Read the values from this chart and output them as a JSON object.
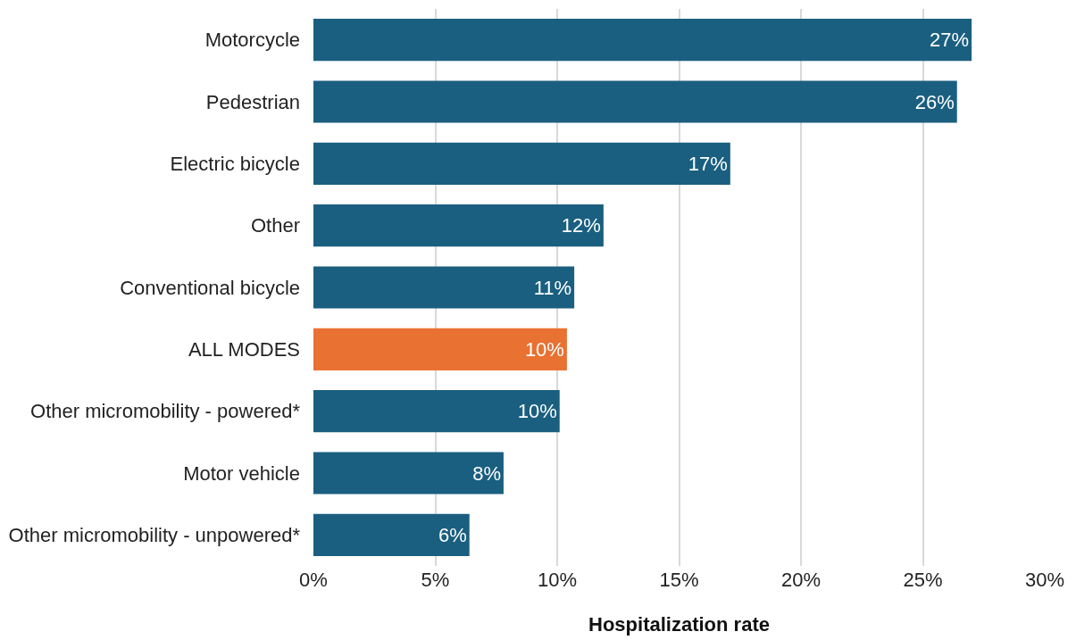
{
  "chart_data": {
    "type": "bar",
    "orientation": "horizontal",
    "xlabel": "Hospitalization rate",
    "categories": [
      "Motorcycle",
      "Pedestrian",
      "Electric bicycle",
      "Other",
      "Conventional bicycle",
      "ALL MODES",
      "Other micromobility - powered*",
      "Motor vehicle",
      "Other micromobility - unpowered*"
    ],
    "values": [
      27.0,
      26.4,
      17.1,
      11.9,
      10.7,
      10.4,
      10.1,
      7.8,
      6.4
    ],
    "value_labels": [
      "27%",
      "26%",
      "17%",
      "12%",
      "11%",
      "10%",
      "10%",
      "8%",
      "6%"
    ],
    "colors": [
      "#1a5f80",
      "#1a5f80",
      "#1a5f80",
      "#1a5f80",
      "#1a5f80",
      "#e97132",
      "#1a5f80",
      "#1a5f80",
      "#1a5f80"
    ],
    "xlim": [
      0,
      30
    ],
    "xticks": [
      {
        "value": 0,
        "label": "0%"
      },
      {
        "value": 5,
        "label": "5%"
      },
      {
        "value": 10,
        "label": "10%"
      },
      {
        "value": 15,
        "label": "15%"
      },
      {
        "value": 20,
        "label": "20%"
      },
      {
        "value": 25,
        "label": "25%"
      },
      {
        "value": 30,
        "label": "30%"
      }
    ],
    "grid": "x"
  }
}
